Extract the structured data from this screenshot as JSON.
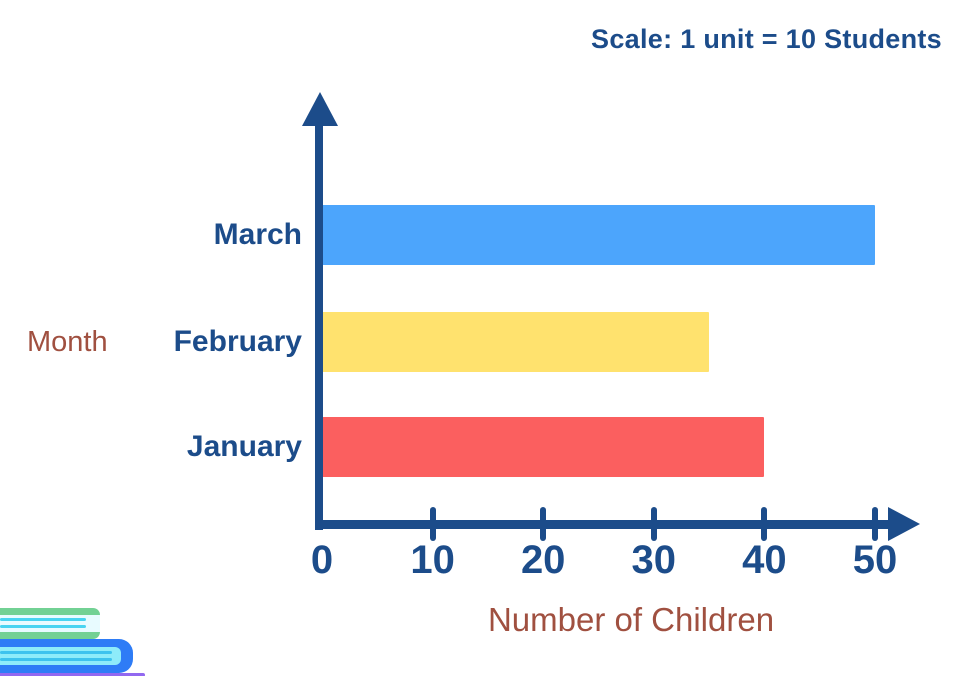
{
  "chart_data": {
    "type": "bar",
    "orientation": "horizontal",
    "scale_note": "Scale: 1 unit = 10 Students",
    "categories": [
      "March",
      "February",
      "January"
    ],
    "values": [
      50,
      35,
      40
    ],
    "bar_colors": [
      "#4CA5FC",
      "#FFE26E",
      "#FB5F5F"
    ],
    "xlabel": "Number of Children",
    "ylabel": "Month",
    "xlim": [
      0,
      50
    ],
    "xticks": [
      0,
      10,
      20,
      30,
      40,
      50
    ],
    "grid": false,
    "legend": false
  },
  "colors": {
    "axis_navy": "#1C4C8A",
    "label_navy": "#1C4C8A",
    "axis_title_maroon": "#A05040",
    "bar_blue": "#4CA5FC",
    "bar_yellow": "#FFE26E",
    "bar_red": "#FB5F5F",
    "book_green": "#72D194",
    "book_blue_cover": "#2E7CF6",
    "book_pages_cyan": "#8EECFA",
    "bottom_purple_line": "#9268F0"
  },
  "decoration": {
    "bottom_left": "stack of books"
  }
}
